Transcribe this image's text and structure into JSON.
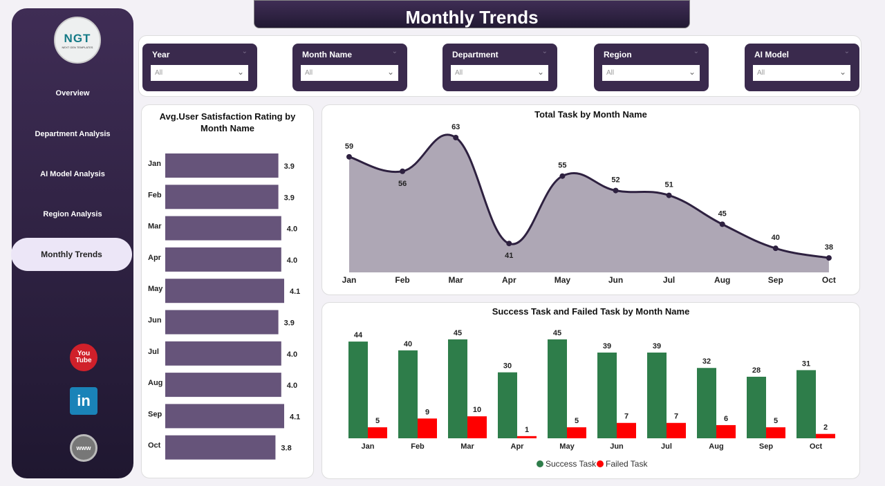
{
  "logo": {
    "text": "NGT",
    "subtitle": "NEXT GEN TEMPLATES"
  },
  "nav": [
    {
      "label": "Overview"
    },
    {
      "label": "Department Analysis"
    },
    {
      "label": "AI Model Analysis"
    },
    {
      "label": "Region Analysis"
    },
    {
      "label": "Monthly Trends",
      "active": true
    }
  ],
  "social": [
    {
      "icon": "youtube-icon",
      "label": "You Tube"
    },
    {
      "icon": "linkedin-icon",
      "label": "in"
    },
    {
      "icon": "globe-icon",
      "label": "www"
    }
  ],
  "page_title": "Monthly Trends",
  "filters": [
    {
      "label": "Year",
      "value": "All"
    },
    {
      "label": "Month Name",
      "value": "All"
    },
    {
      "label": "Department",
      "value": "All"
    },
    {
      "label": "Region",
      "value": "All"
    },
    {
      "label": "AI Model",
      "value": "All"
    }
  ],
  "colors": {
    "sidebar": "#3f2d55",
    "bar": "#66547a",
    "area": "#aea7b5",
    "line": "#2e2140",
    "success": "#2e7d4a",
    "failed": "#ff0000"
  },
  "chart_data": [
    {
      "type": "bar",
      "orientation": "horizontal",
      "title": "Avg.User Satisfaction Rating by Month Name",
      "categories": [
        "Jan",
        "Feb",
        "Mar",
        "Apr",
        "May",
        "Jun",
        "Jul",
        "Aug",
        "Sep",
        "Oct"
      ],
      "values": [
        3.9,
        3.9,
        4.0,
        4.0,
        4.1,
        3.9,
        4.0,
        4.0,
        4.1,
        3.8
      ]
    },
    {
      "type": "area",
      "title": "Total Task by Month Name",
      "categories": [
        "Jan",
        "Feb",
        "Mar",
        "Apr",
        "May",
        "Jun",
        "Jul",
        "Aug",
        "Sep",
        "Oct"
      ],
      "values": [
        59,
        56,
        63,
        41,
        55,
        52,
        51,
        45,
        40,
        38
      ]
    },
    {
      "type": "bar",
      "title": "Success Task and Failed Task by Month Name",
      "categories": [
        "Jan",
        "Feb",
        "Mar",
        "Apr",
        "May",
        "Jun",
        "Jul",
        "Aug",
        "Sep",
        "Oct"
      ],
      "legend": "bottom",
      "series": [
        {
          "name": "Success Task",
          "values": [
            44,
            40,
            45,
            30,
            45,
            39,
            39,
            32,
            28,
            31
          ]
        },
        {
          "name": "Failed Task",
          "values": [
            5,
            9,
            10,
            1,
            5,
            7,
            7,
            6,
            5,
            2
          ]
        }
      ]
    }
  ]
}
